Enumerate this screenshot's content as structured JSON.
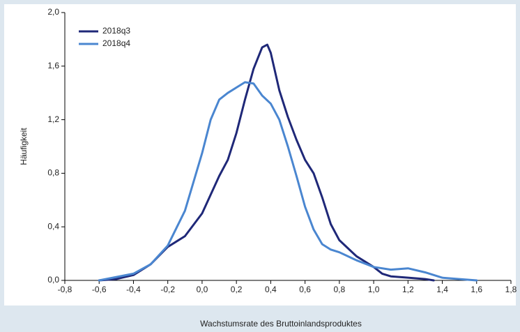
{
  "chart_data": {
    "type": "line",
    "xlabel": "Wachstumsrate des Bruttoinlandsproduktes",
    "ylabel": "Häufigkeit",
    "legend": "upper left",
    "grid": false,
    "xlim": [
      -0.8,
      1.8
    ],
    "xticks": [
      {
        "value": -0.8,
        "label": "-0,8"
      },
      {
        "value": -0.6,
        "label": "-0,6"
      },
      {
        "value": -0.4,
        "label": "-0,4"
      },
      {
        "value": -0.2,
        "label": "-0,2"
      },
      {
        "value": 0,
        "label": "0,0"
      },
      {
        "value": 0.2,
        "label": "0,2"
      },
      {
        "value": 0.4,
        "label": "0,4"
      },
      {
        "value": 0.6,
        "label": "0,6"
      },
      {
        "value": 0.8,
        "label": "0,8"
      },
      {
        "value": 1.0,
        "label": "1,0"
      },
      {
        "value": 1.2,
        "label": "1,2"
      },
      {
        "value": 1.4,
        "label": "1,4"
      },
      {
        "value": 1.6,
        "label": "1,6"
      },
      {
        "value": 1.8,
        "label": "1,8"
      }
    ],
    "ylim": [
      0,
      2.0
    ],
    "yticks": [
      {
        "value": 0,
        "label": "0,0"
      },
      {
        "value": 0.4,
        "label": "0,4"
      },
      {
        "value": 0.8,
        "label": "0,8"
      },
      {
        "value": 1.2,
        "label": "1,2"
      },
      {
        "value": 1.6,
        "label": "1,6"
      },
      {
        "value": 2.0,
        "label": "2,0"
      }
    ],
    "series": [
      {
        "name": "2018q3",
        "color": "#1f2878",
        "x": [
          -0.6,
          -0.5,
          -0.4,
          -0.3,
          -0.2,
          -0.1,
          0.0,
          0.1,
          0.15,
          0.2,
          0.25,
          0.3,
          0.35,
          0.38,
          0.4,
          0.45,
          0.5,
          0.55,
          0.6,
          0.65,
          0.7,
          0.75,
          0.8,
          0.9,
          1.0,
          1.05,
          1.1,
          1.2,
          1.3,
          1.35
        ],
        "values": [
          0,
          0.01,
          0.04,
          0.12,
          0.25,
          0.33,
          0.5,
          0.78,
          0.9,
          1.1,
          1.35,
          1.58,
          1.74,
          1.76,
          1.7,
          1.42,
          1.22,
          1.05,
          0.9,
          0.8,
          0.62,
          0.42,
          0.3,
          0.18,
          0.1,
          0.05,
          0.03,
          0.02,
          0.01,
          0
        ]
      },
      {
        "name": "2018q4",
        "color": "#4a86d0",
        "x": [
          -0.6,
          -0.4,
          -0.3,
          -0.2,
          -0.1,
          0.0,
          0.05,
          0.1,
          0.15,
          0.2,
          0.25,
          0.3,
          0.35,
          0.4,
          0.45,
          0.5,
          0.55,
          0.6,
          0.65,
          0.7,
          0.75,
          0.8,
          0.9,
          1.0,
          1.1,
          1.2,
          1.3,
          1.4,
          1.5,
          1.6
        ],
        "values": [
          0,
          0.05,
          0.12,
          0.26,
          0.52,
          0.95,
          1.2,
          1.35,
          1.4,
          1.44,
          1.48,
          1.47,
          1.38,
          1.32,
          1.2,
          1.0,
          0.78,
          0.55,
          0.38,
          0.27,
          0.23,
          0.21,
          0.15,
          0.1,
          0.08,
          0.09,
          0.06,
          0.02,
          0.01,
          0
        ]
      }
    ]
  }
}
